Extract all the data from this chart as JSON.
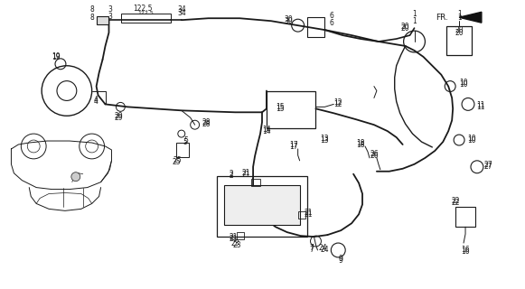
{
  "bg_color": "#ffffff",
  "fig_width": 5.81,
  "fig_height": 3.2,
  "dpi": 100,
  "lc": "#1a1a1a",
  "lw_main": 1.4,
  "lw_thin": 0.7,
  "fs": 5.5
}
